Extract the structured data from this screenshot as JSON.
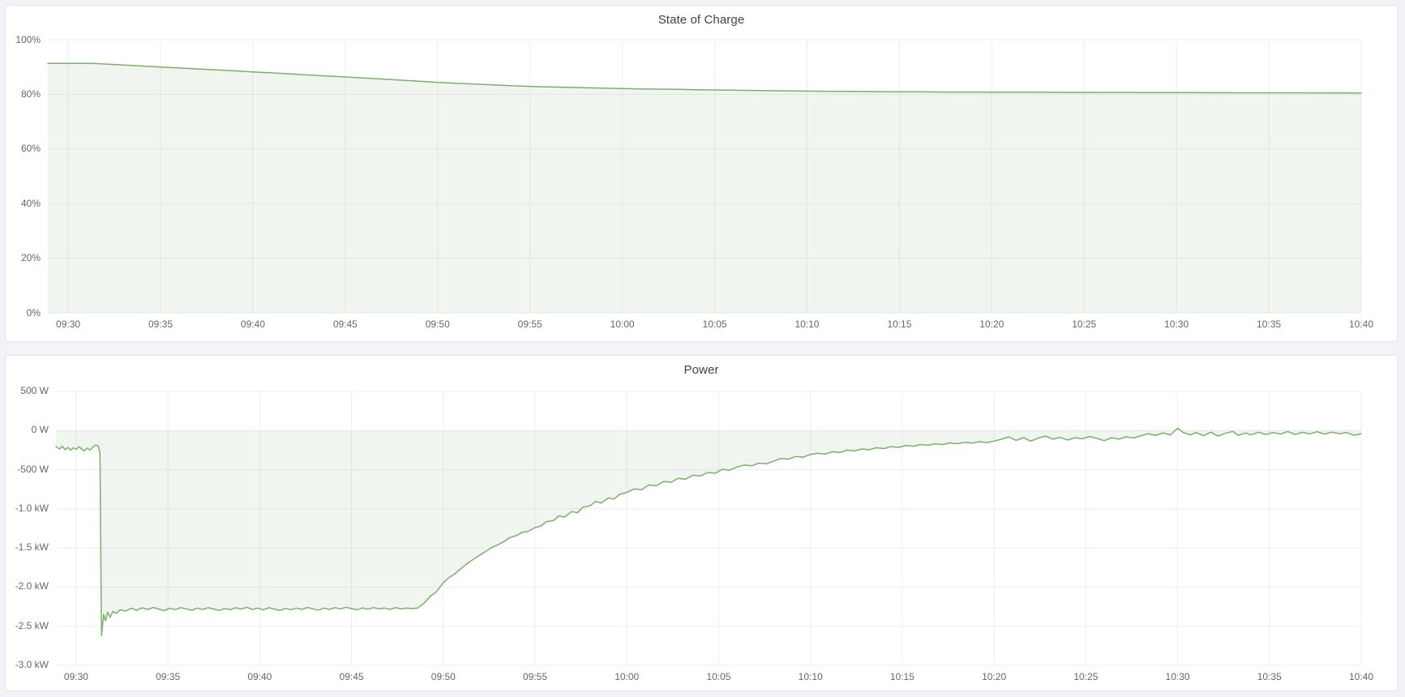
{
  "page": {
    "background": "#f1f3f8",
    "panel_background": "#ffffff"
  },
  "panels": [
    {
      "name": "state-of-charge"
    },
    {
      "name": "power"
    }
  ],
  "chart_data": [
    {
      "type": "area",
      "title": "State of Charge",
      "ylabel": "",
      "xlabel": "",
      "unit": "percent",
      "legend": "none",
      "grid": true,
      "line_color": "#79b16c",
      "fill_opacity": 0.11,
      "grid_color": "#ebedf0",
      "x_domain_minutes": [
        -1.1,
        70
      ],
      "y_domain": [
        0,
        100
      ],
      "x_ticks": [
        {
          "v": 0,
          "label": "09:30"
        },
        {
          "v": 5,
          "label": "09:35"
        },
        {
          "v": 10,
          "label": "09:40"
        },
        {
          "v": 15,
          "label": "09:45"
        },
        {
          "v": 20,
          "label": "09:50"
        },
        {
          "v": 25,
          "label": "09:55"
        },
        {
          "v": 30,
          "label": "10:00"
        },
        {
          "v": 35,
          "label": "10:05"
        },
        {
          "v": 40,
          "label": "10:10"
        },
        {
          "v": 45,
          "label": "10:15"
        },
        {
          "v": 50,
          "label": "10:20"
        },
        {
          "v": 55,
          "label": "10:25"
        },
        {
          "v": 60,
          "label": "10:30"
        },
        {
          "v": 65,
          "label": "10:35"
        },
        {
          "v": 70,
          "label": "10:40"
        }
      ],
      "y_ticks": [
        {
          "v": 0,
          "label": "0%"
        },
        {
          "v": 20,
          "label": "20%"
        },
        {
          "v": 40,
          "label": "40%"
        },
        {
          "v": 60,
          "label": "60%"
        },
        {
          "v": 80,
          "label": "80%"
        },
        {
          "v": 100,
          "label": "100%"
        }
      ],
      "points": [
        [
          -1.1,
          91.3
        ],
        [
          0,
          91.3
        ],
        [
          0.8,
          91.32
        ],
        [
          1.5,
          91.28
        ],
        [
          2,
          91.1
        ],
        [
          3,
          90.75
        ],
        [
          4,
          90.4
        ],
        [
          5,
          90.0
        ],
        [
          6,
          89.65
        ],
        [
          7,
          89.3
        ],
        [
          8,
          88.95
        ],
        [
          9,
          88.6
        ],
        [
          10,
          88.2
        ],
        [
          11,
          87.85
        ],
        [
          12,
          87.5
        ],
        [
          13,
          87.1
        ],
        [
          14,
          86.75
        ],
        [
          15,
          86.35
        ],
        [
          16,
          86.0
        ],
        [
          17,
          85.6
        ],
        [
          18,
          85.2
        ],
        [
          19,
          84.8
        ],
        [
          20,
          84.4
        ],
        [
          21,
          84.05
        ],
        [
          22,
          83.75
        ],
        [
          23,
          83.45
        ],
        [
          24,
          83.15
        ],
        [
          25,
          82.9
        ],
        [
          26,
          82.7
        ],
        [
          27,
          82.55
        ],
        [
          28,
          82.4
        ],
        [
          29,
          82.25
        ],
        [
          30,
          82.15
        ],
        [
          31,
          82.0
        ],
        [
          32,
          81.9
        ],
        [
          33,
          81.8
        ],
        [
          34,
          81.7
        ],
        [
          35,
          81.6
        ],
        [
          36,
          81.5
        ],
        [
          37,
          81.42
        ],
        [
          38,
          81.35
        ],
        [
          39,
          81.27
        ],
        [
          40,
          81.2
        ],
        [
          41,
          81.14
        ],
        [
          42,
          81.08
        ],
        [
          43,
          81.03
        ],
        [
          44,
          80.99
        ],
        [
          45,
          80.95
        ],
        [
          46,
          80.91
        ],
        [
          47,
          80.87
        ],
        [
          48,
          80.84
        ],
        [
          49,
          80.82
        ],
        [
          50,
          80.8
        ],
        [
          52,
          80.76
        ],
        [
          54,
          80.72
        ],
        [
          56,
          80.68
        ],
        [
          58,
          80.65
        ],
        [
          60,
          80.62
        ],
        [
          62,
          80.6
        ],
        [
          64,
          80.57
        ],
        [
          66,
          80.55
        ],
        [
          68,
          80.52
        ],
        [
          70,
          80.5
        ]
      ]
    },
    {
      "type": "area",
      "title": "Power",
      "ylabel": "",
      "xlabel": "",
      "unit": "watt",
      "legend": "none",
      "grid": true,
      "line_color": "#79b16c",
      "fill_opacity": 0.11,
      "grid_color": "#ebedf0",
      "x_domain_minutes": [
        -1.1,
        70
      ],
      "y_domain": [
        -3000,
        500
      ],
      "x_ticks": [
        {
          "v": 0,
          "label": "09:30"
        },
        {
          "v": 5,
          "label": "09:35"
        },
        {
          "v": 10,
          "label": "09:40"
        },
        {
          "v": 15,
          "label": "09:45"
        },
        {
          "v": 20,
          "label": "09:50"
        },
        {
          "v": 25,
          "label": "09:55"
        },
        {
          "v": 30,
          "label": "10:00"
        },
        {
          "v": 35,
          "label": "10:05"
        },
        {
          "v": 40,
          "label": "10:10"
        },
        {
          "v": 45,
          "label": "10:15"
        },
        {
          "v": 50,
          "label": "10:20"
        },
        {
          "v": 55,
          "label": "10:25"
        },
        {
          "v": 60,
          "label": "10:30"
        },
        {
          "v": 65,
          "label": "10:35"
        },
        {
          "v": 70,
          "label": "10:40"
        }
      ],
      "y_ticks": [
        {
          "v": 500,
          "label": "500 W"
        },
        {
          "v": 0,
          "label": "0 W"
        },
        {
          "v": -500,
          "label": "-500 W"
        },
        {
          "v": -1000,
          "label": "-1.0 kW"
        },
        {
          "v": -1500,
          "label": "-1.5 kW"
        },
        {
          "v": -2000,
          "label": "-2.0 kW"
        },
        {
          "v": -2500,
          "label": "-2.5 kW"
        },
        {
          "v": -3000,
          "label": "-3.0 kW"
        }
      ],
      "points": [
        [
          -1.1,
          -205
        ],
        [
          -0.9,
          -235
        ],
        [
          -0.75,
          -200
        ],
        [
          -0.6,
          -245
        ],
        [
          -0.45,
          -215
        ],
        [
          -0.3,
          -250
        ],
        [
          -0.15,
          -220
        ],
        [
          0,
          -240
        ],
        [
          0.15,
          -205
        ],
        [
          0.3,
          -235
        ],
        [
          0.45,
          -260
        ],
        [
          0.6,
          -225
        ],
        [
          0.75,
          -250
        ],
        [
          0.9,
          -215
        ],
        [
          1.05,
          -185
        ],
        [
          1.2,
          -195
        ],
        [
          1.3,
          -280
        ],
        [
          1.38,
          -2620
        ],
        [
          1.5,
          -2350
        ],
        [
          1.6,
          -2430
        ],
        [
          1.72,
          -2320
        ],
        [
          1.85,
          -2385
        ],
        [
          2,
          -2310
        ],
        [
          2.2,
          -2335
        ],
        [
          2.4,
          -2290
        ],
        [
          2.7,
          -2305
        ],
        [
          3,
          -2270
        ],
        [
          3.3,
          -2295
        ],
        [
          3.6,
          -2265
        ],
        [
          3.9,
          -2285
        ],
        [
          4.2,
          -2260
        ],
        [
          4.5,
          -2280
        ],
        [
          4.8,
          -2300
        ],
        [
          5.1,
          -2270
        ],
        [
          5.4,
          -2288
        ],
        [
          5.7,
          -2262
        ],
        [
          6,
          -2278
        ],
        [
          6.3,
          -2296
        ],
        [
          6.6,
          -2268
        ],
        [
          6.9,
          -2285
        ],
        [
          7.2,
          -2263
        ],
        [
          7.5,
          -2280
        ],
        [
          7.8,
          -2298
        ],
        [
          8.1,
          -2272
        ],
        [
          8.4,
          -2290
        ],
        [
          8.7,
          -2264
        ],
        [
          9,
          -2280
        ],
        [
          9.3,
          -2258
        ],
        [
          9.6,
          -2286
        ],
        [
          9.9,
          -2268
        ],
        [
          10.2,
          -2290
        ],
        [
          10.5,
          -2263
        ],
        [
          10.8,
          -2280
        ],
        [
          11.1,
          -2298
        ],
        [
          11.4,
          -2272
        ],
        [
          11.7,
          -2288
        ],
        [
          12,
          -2268
        ],
        [
          12.3,
          -2284
        ],
        [
          12.6,
          -2260
        ],
        [
          12.9,
          -2278
        ],
        [
          13.2,
          -2294
        ],
        [
          13.5,
          -2268
        ],
        [
          13.8,
          -2284
        ],
        [
          14.1,
          -2262
        ],
        [
          14.4,
          -2278
        ],
        [
          14.7,
          -2258
        ],
        [
          15,
          -2274
        ],
        [
          15.3,
          -2290
        ],
        [
          15.6,
          -2266
        ],
        [
          15.9,
          -2282
        ],
        [
          16.2,
          -2262
        ],
        [
          16.5,
          -2278
        ],
        [
          16.8,
          -2268
        ],
        [
          17.1,
          -2284
        ],
        [
          17.4,
          -2262
        ],
        [
          17.7,
          -2278
        ],
        [
          18,
          -2268
        ],
        [
          18.3,
          -2274
        ],
        [
          18.6,
          -2268
        ],
        [
          19,
          -2195
        ],
        [
          19.3,
          -2115
        ],
        [
          19.6,
          -2065
        ],
        [
          20,
          -1945
        ],
        [
          20.3,
          -1880
        ],
        [
          20.6,
          -1835
        ],
        [
          21,
          -1755
        ],
        [
          21.3,
          -1700
        ],
        [
          21.6,
          -1650
        ],
        [
          22,
          -1590
        ],
        [
          22.3,
          -1545
        ],
        [
          22.6,
          -1500
        ],
        [
          23,
          -1455
        ],
        [
          23.3,
          -1420
        ],
        [
          23.6,
          -1370
        ],
        [
          24,
          -1340
        ],
        [
          24.3,
          -1300
        ],
        [
          24.6,
          -1290
        ],
        [
          25,
          -1240
        ],
        [
          25.3,
          -1220
        ],
        [
          25.6,
          -1165
        ],
        [
          26,
          -1150
        ],
        [
          26.3,
          -1090
        ],
        [
          26.6,
          -1105
        ],
        [
          27,
          -1035
        ],
        [
          27.3,
          -1050
        ],
        [
          27.6,
          -980
        ],
        [
          28,
          -960
        ],
        [
          28.3,
          -905
        ],
        [
          28.6,
          -925
        ],
        [
          29,
          -860
        ],
        [
          29.3,
          -875
        ],
        [
          29.6,
          -815
        ],
        [
          30,
          -790
        ],
        [
          30.4,
          -745
        ],
        [
          30.8,
          -755
        ],
        [
          31.2,
          -695
        ],
        [
          31.6,
          -705
        ],
        [
          32,
          -650
        ],
        [
          32.4,
          -660
        ],
        [
          32.8,
          -610
        ],
        [
          33.2,
          -620
        ],
        [
          33.6,
          -570
        ],
        [
          34,
          -580
        ],
        [
          34.4,
          -535
        ],
        [
          34.8,
          -545
        ],
        [
          35.2,
          -495
        ],
        [
          35.6,
          -505
        ],
        [
          36,
          -465
        ],
        [
          36.4,
          -440
        ],
        [
          36.8,
          -450
        ],
        [
          37.2,
          -415
        ],
        [
          37.6,
          -425
        ],
        [
          38,
          -390
        ],
        [
          38.4,
          -355
        ],
        [
          38.8,
          -365
        ],
        [
          39.2,
          -330
        ],
        [
          39.6,
          -340
        ],
        [
          40,
          -305
        ],
        [
          40.4,
          -290
        ],
        [
          40.8,
          -300
        ],
        [
          41.2,
          -270
        ],
        [
          41.6,
          -280
        ],
        [
          42,
          -250
        ],
        [
          42.4,
          -260
        ],
        [
          42.8,
          -235
        ],
        [
          43.2,
          -245
        ],
        [
          43.6,
          -220
        ],
        [
          44,
          -230
        ],
        [
          44.4,
          -205
        ],
        [
          44.8,
          -215
        ],
        [
          45.2,
          -190
        ],
        [
          45.6,
          -200
        ],
        [
          46,
          -178
        ],
        [
          46.4,
          -188
        ],
        [
          46.8,
          -168
        ],
        [
          47.2,
          -178
        ],
        [
          47.6,
          -158
        ],
        [
          48,
          -168
        ],
        [
          48.4,
          -150
        ],
        [
          48.8,
          -160
        ],
        [
          49.2,
          -142
        ],
        [
          49.6,
          -152
        ],
        [
          50,
          -135
        ],
        [
          50.4,
          -110
        ],
        [
          50.8,
          -80
        ],
        [
          51.2,
          -125
        ],
        [
          51.6,
          -90
        ],
        [
          52,
          -135
        ],
        [
          52.4,
          -95
        ],
        [
          52.8,
          -70
        ],
        [
          53.2,
          -110
        ],
        [
          53.6,
          -85
        ],
        [
          54,
          -120
        ],
        [
          54.4,
          -90
        ],
        [
          54.8,
          -105
        ],
        [
          55.2,
          -75
        ],
        [
          55.6,
          -100
        ],
        [
          56,
          -130
        ],
        [
          56.4,
          -90
        ],
        [
          56.8,
          -110
        ],
        [
          57.2,
          -80
        ],
        [
          57.6,
          -95
        ],
        [
          58,
          -65
        ],
        [
          58.4,
          -40
        ],
        [
          58.8,
          -60
        ],
        [
          59.2,
          -30
        ],
        [
          59.6,
          -55
        ],
        [
          60,
          30
        ],
        [
          60.3,
          -25
        ],
        [
          60.7,
          -55
        ],
        [
          61,
          -25
        ],
        [
          61.4,
          -65
        ],
        [
          61.8,
          -20
        ],
        [
          62.2,
          -70
        ],
        [
          62.6,
          -35
        ],
        [
          63,
          -10
        ],
        [
          63.3,
          -60
        ],
        [
          63.7,
          -30
        ],
        [
          64,
          -55
        ],
        [
          64.4,
          -20
        ],
        [
          64.8,
          -50
        ],
        [
          65.2,
          -25
        ],
        [
          65.6,
          -45
        ],
        [
          66,
          -12
        ],
        [
          66.4,
          -50
        ],
        [
          66.8,
          -22
        ],
        [
          67.2,
          -42
        ],
        [
          67.6,
          -15
        ],
        [
          68,
          -45
        ],
        [
          68.4,
          -20
        ],
        [
          68.8,
          -40
        ],
        [
          69.2,
          -25
        ],
        [
          69.6,
          -60
        ],
        [
          70,
          -40
        ]
      ]
    }
  ]
}
